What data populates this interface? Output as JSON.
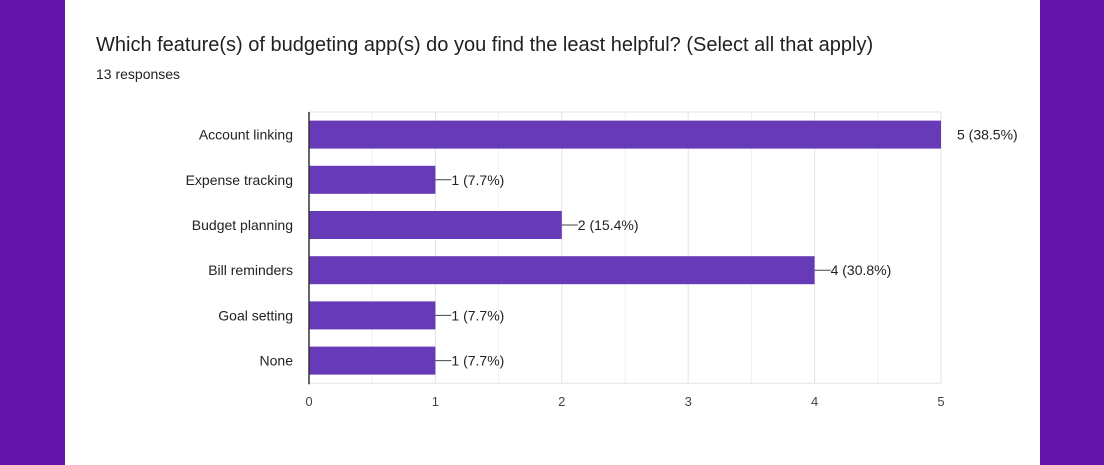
{
  "form": {
    "question": "Which feature(s) of budgeting app(s) do you find the least helpful? (Select all that apply)",
    "responses": "13 responses"
  },
  "colors": {
    "background": "#6314a8",
    "bar": "#673ab7"
  },
  "chart_data": {
    "type": "bar",
    "orientation": "horizontal",
    "categories": [
      "Account linking",
      "Expense tracking",
      "Budget planning",
      "Bill reminders",
      "Goal setting",
      "None"
    ],
    "values": [
      5,
      1,
      2,
      4,
      1,
      1
    ],
    "data_labels": [
      "5 (38.5%)",
      "1 (7.7%)",
      "2 (15.4%)",
      "4 (30.8%)",
      "1 (7.7%)",
      "1 (7.7%)"
    ],
    "xlim": [
      0,
      5
    ],
    "xticks": [
      "0",
      "1",
      "2",
      "3",
      "4",
      "5"
    ],
    "grid": true
  }
}
